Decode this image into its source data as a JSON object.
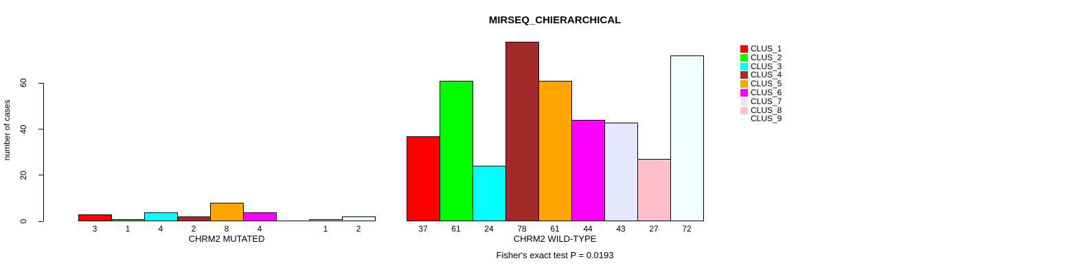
{
  "chart_data": {
    "type": "bar",
    "title": "MIRSEQ_CHIERARCHICAL",
    "ylabel": "number of cases",
    "yticks": [
      0,
      20,
      40,
      60
    ],
    "ylim": [
      0,
      80
    ],
    "grid": false,
    "legend_position": "right",
    "clusters": [
      {
        "name": "CLUS_1",
        "color": "#FF0000"
      },
      {
        "name": "CLUS_2",
        "color": "#00FF00"
      },
      {
        "name": "CLUS_3",
        "color": "#00FFFF"
      },
      {
        "name": "CLUS_4",
        "color": "#A52A2A"
      },
      {
        "name": "CLUS_5",
        "color": "#FFA500"
      },
      {
        "name": "CLUS_6",
        "color": "#FF00FF"
      },
      {
        "name": "CLUS_7",
        "color": "#E6E6FA"
      },
      {
        "name": "CLUS_8",
        "color": "#FFC0CB"
      },
      {
        "name": "CLUS_9",
        "color": "#F0FFFF"
      }
    ],
    "groups": [
      {
        "label": "CHRM2 MUTATED",
        "values": [
          3,
          1,
          4,
          2,
          8,
          4,
          0,
          1,
          2
        ],
        "bar_labels": [
          "3",
          "1",
          "4",
          "2",
          "8",
          "4",
          "",
          "1",
          "2"
        ]
      },
      {
        "label": "CHRM2 WILD-TYPE",
        "values": [
          37,
          61,
          24,
          78,
          61,
          44,
          43,
          27,
          72
        ],
        "bar_labels": [
          "37",
          "61",
          "24",
          "78",
          "61",
          "44",
          "43",
          "27",
          "72"
        ]
      }
    ],
    "annotation": "Fisher's exact test P = 0.0193"
  }
}
